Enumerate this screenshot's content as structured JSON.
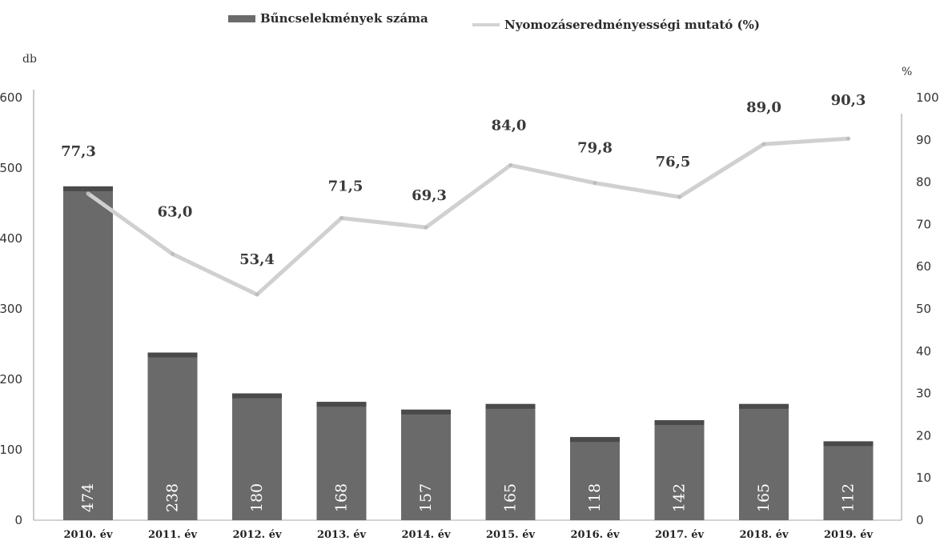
{
  "legend": {
    "bar_label": "Bűncselekmények száma",
    "line_label": "Nyomozáseredményességi mutató (%)"
  },
  "axes": {
    "left_unit": "db",
    "right_unit": "%"
  },
  "colors": {
    "bar": "#6a6a6a",
    "line": "#d0d0d0"
  },
  "chart_data": {
    "type": "bar",
    "categories": [
      "2010. év",
      "2011. év",
      "2012. év",
      "2013. év",
      "2014. év",
      "2015. év",
      "2016. év",
      "2017. év",
      "2018. év",
      "2019. év"
    ],
    "series": [
      {
        "name": "Bűncselekmények száma",
        "type": "bar",
        "axis": "left",
        "values": [
          474,
          238,
          180,
          168,
          157,
          165,
          118,
          142,
          165,
          112
        ]
      },
      {
        "name": "Nyomozáseredményességi mutató (%)",
        "type": "line",
        "axis": "right",
        "values": [
          77.3,
          63.0,
          53.4,
          71.5,
          69.3,
          84.0,
          79.8,
          76.5,
          89.0,
          90.3
        ],
        "labels": [
          "77,3",
          "63,0",
          "53,4",
          "71,5",
          "69,3",
          "84,0",
          "79,8",
          "76,5",
          "89,0",
          "90,3"
        ]
      }
    ],
    "ylim_left": [
      0,
      600
    ],
    "yticks_left": [
      0,
      100,
      200,
      300,
      400,
      500,
      600
    ],
    "ylim_right": [
      0,
      100
    ],
    "yticks_right": [
      0,
      10,
      20,
      30,
      40,
      50,
      60,
      70,
      80,
      90,
      100
    ],
    "grid": false,
    "legend_position": "top"
  }
}
